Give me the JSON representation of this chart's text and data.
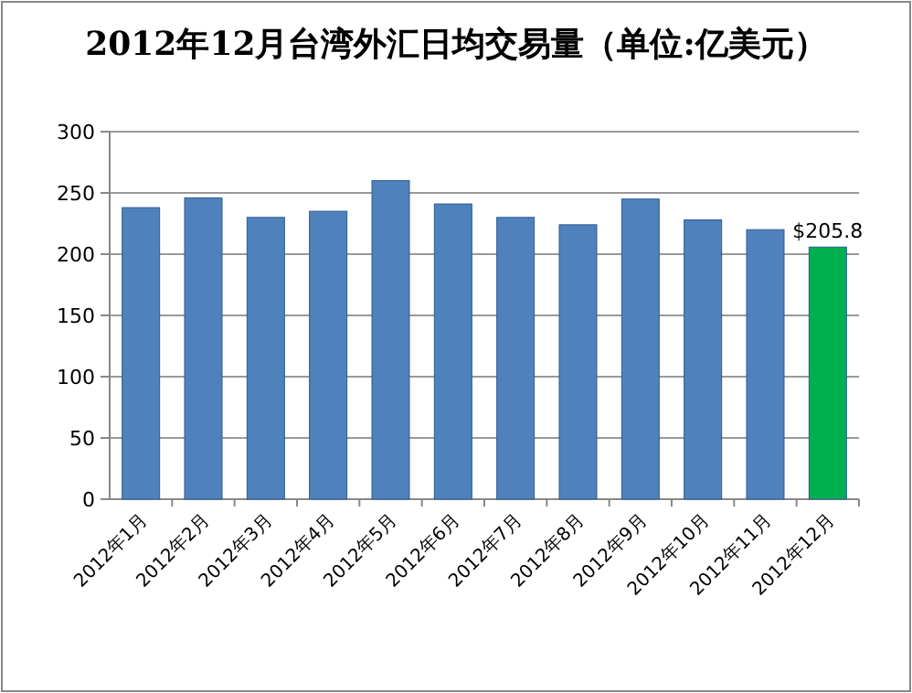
{
  "chart_data": {
    "type": "bar",
    "title": "2012年12月台湾外汇日均交易量（单位:亿美元）",
    "categories": [
      "2012年1月",
      "2012年2月",
      "2012年3月",
      "2012年4月",
      "2012年5月",
      "2012年6月",
      "2012年7月",
      "2012年8月",
      "2012年9月",
      "2012年10月",
      "2012年11月",
      "2012年12月"
    ],
    "values": [
      238,
      246,
      230,
      235,
      260,
      241,
      230,
      224,
      245,
      228,
      220,
      205.8
    ],
    "colors": [
      "#4f81bd",
      "#4f81bd",
      "#4f81bd",
      "#4f81bd",
      "#4f81bd",
      "#4f81bd",
      "#4f81bd",
      "#4f81bd",
      "#4f81bd",
      "#4f81bd",
      "#4f81bd",
      "#00b050"
    ],
    "value_labels": [
      null,
      null,
      null,
      null,
      null,
      null,
      null,
      null,
      null,
      null,
      null,
      "$205.8"
    ],
    "ylim": [
      0,
      300
    ],
    "yticks": [
      0,
      50,
      100,
      150,
      200,
      250,
      300
    ],
    "grid": "y"
  }
}
